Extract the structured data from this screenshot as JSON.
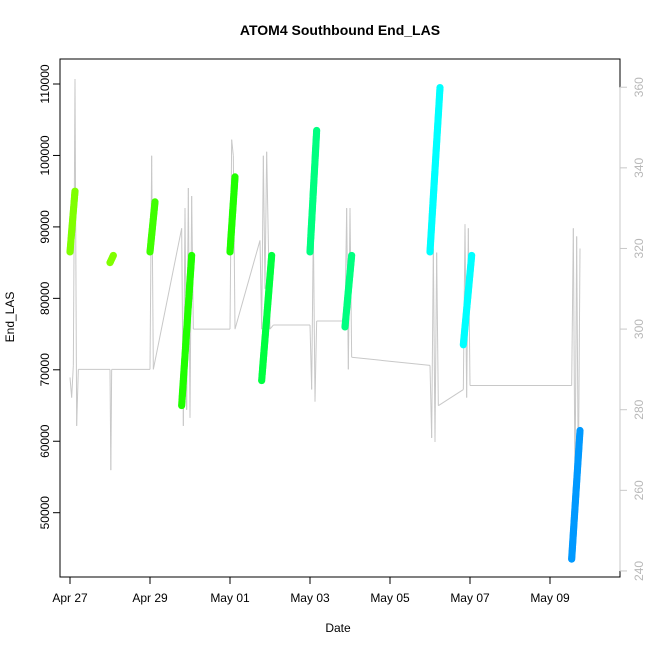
{
  "chart_data": {
    "type": "scatter",
    "title": "ATOM4 Southbound End_LAS",
    "xlabel": "Date",
    "ylabel": "End_LAS",
    "x_ticks": [
      "Apr 27",
      "Apr 29",
      "May 01",
      "May 03",
      "May 05",
      "May 07",
      "May 09"
    ],
    "xlim": [
      "2021-04-26T18:00",
      "2021-05-10T18:00"
    ],
    "ylim": [
      41000,
      113500
    ],
    "y_ticks": [
      50000,
      60000,
      70000,
      80000,
      90000,
      100000,
      110000
    ],
    "y2_ticks": [
      240,
      260,
      280,
      300,
      320,
      340,
      360
    ],
    "y2lim": [
      238.5,
      367
    ],
    "y2_color": "#c8c8c8",
    "grid": false,
    "series": [
      {
        "kind": "points",
        "segments": [
          {
            "x0": "2021-04-27T00:00",
            "x1": "2021-04-27T03:00",
            "y0": 86500,
            "y1": 95000,
            "color": "#80ff00"
          },
          {
            "x0": "2021-04-28T00:00",
            "x1": "2021-04-28T02:00",
            "y0": 85000,
            "y1": 86000,
            "color": "#80ff00"
          },
          {
            "x0": "2021-04-29T00:00",
            "x1": "2021-04-29T03:00",
            "y0": 86500,
            "y1": 93500,
            "color": "#40ff00"
          },
          {
            "x0": "2021-04-29T19:00",
            "x1": "2021-04-30T01:00",
            "y0": 65000,
            "y1": 86000,
            "color": "#20ff00"
          },
          {
            "x0": "2021-05-01T00:00",
            "x1": "2021-05-01T03:00",
            "y0": 86500,
            "y1": 97000,
            "color": "#20ff00"
          },
          {
            "x0": "2021-05-01T19:00",
            "x1": "2021-05-02T01:00",
            "y0": 68500,
            "y1": 86000,
            "color": "#00ff40"
          },
          {
            "x0": "2021-05-03T00:00",
            "x1": "2021-05-03T04:00",
            "y0": 86500,
            "y1": 103500,
            "color": "#00ff80"
          },
          {
            "x0": "2021-05-03T21:00",
            "x1": "2021-05-04T01:00",
            "y0": 76000,
            "y1": 86000,
            "color": "#00ff80"
          },
          {
            "x0": "2021-05-06T00:00",
            "x1": "2021-05-06T06:00",
            "y0": 86500,
            "y1": 109500,
            "color": "#00ffff"
          },
          {
            "x0": "2021-05-06T20:00",
            "x1": "2021-05-07T01:00",
            "y0": 73500,
            "y1": 86000,
            "color": "#00ffff"
          },
          {
            "x0": "2021-05-09T13:00",
            "x1": "2021-05-09T18:00",
            "y0": 43500,
            "y1": 61500,
            "color": "#0099ff"
          }
        ]
      },
      {
        "kind": "line",
        "axis": "right",
        "color": "#c8c8c8",
        "points": [
          [
            "2021-04-27T00:00",
            288
          ],
          [
            "2021-04-27T01:00",
            283
          ],
          [
            "2021-04-27T02:00",
            291
          ],
          [
            "2021-04-27T03:00",
            362
          ],
          [
            "2021-04-27T04:00",
            276
          ],
          [
            "2021-04-27T05:00",
            290
          ],
          [
            "2021-04-28T00:00",
            290
          ],
          [
            "2021-04-28T00:30",
            265
          ],
          [
            "2021-04-28T01:00",
            290
          ],
          [
            "2021-04-29T00:00",
            290
          ],
          [
            "2021-04-29T01:00",
            343
          ],
          [
            "2021-04-29T02:00",
            290
          ],
          [
            "2021-04-29T19:00",
            325
          ],
          [
            "2021-04-29T20:00",
            276
          ],
          [
            "2021-04-29T21:00",
            330
          ],
          [
            "2021-04-29T22:00",
            280
          ],
          [
            "2021-04-29T23:00",
            335
          ],
          [
            "2021-04-30T00:00",
            278
          ],
          [
            "2021-04-30T01:00",
            333
          ],
          [
            "2021-04-30T02:00",
            300
          ],
          [
            "2021-05-01T00:00",
            300
          ],
          [
            "2021-05-01T01:00",
            347
          ],
          [
            "2021-05-01T02:00",
            343
          ],
          [
            "2021-05-01T03:00",
            300
          ],
          [
            "2021-05-01T18:00",
            322
          ],
          [
            "2021-05-01T19:00",
            300
          ],
          [
            "2021-05-01T20:00",
            343
          ],
          [
            "2021-05-01T21:00",
            310
          ],
          [
            "2021-05-01T22:00",
            344
          ],
          [
            "2021-05-02T00:00",
            300
          ],
          [
            "2021-05-02T02:00",
            301
          ],
          [
            "2021-05-03T00:00",
            301
          ],
          [
            "2021-05-03T01:00",
            285
          ],
          [
            "2021-05-03T02:00",
            325
          ],
          [
            "2021-05-03T03:00",
            282
          ],
          [
            "2021-05-03T04:00",
            302
          ],
          [
            "2021-05-03T21:00",
            302
          ],
          [
            "2021-05-03T22:00",
            330
          ],
          [
            "2021-05-03T23:00",
            290
          ],
          [
            "2021-05-04T00:00",
            330
          ],
          [
            "2021-05-04T01:00",
            293
          ],
          [
            "2021-05-06T00:00",
            291
          ],
          [
            "2021-05-06T01:00",
            273
          ],
          [
            "2021-05-06T02:00",
            320
          ],
          [
            "2021-05-06T03:00",
            272
          ],
          [
            "2021-05-06T04:00",
            319
          ],
          [
            "2021-05-06T05:00",
            281
          ],
          [
            "2021-05-06T20:00",
            285
          ],
          [
            "2021-05-06T21:00",
            326
          ],
          [
            "2021-05-06T22:00",
            283
          ],
          [
            "2021-05-06T23:00",
            325
          ],
          [
            "2021-05-07T00:00",
            286
          ],
          [
            "2021-05-09T13:00",
            286
          ],
          [
            "2021-05-09T14:00",
            325
          ],
          [
            "2021-05-09T15:00",
            260
          ],
          [
            "2021-05-09T16:00",
            323
          ],
          [
            "2021-05-09T17:00",
            262
          ],
          [
            "2021-05-09T18:00",
            320
          ]
        ]
      }
    ]
  }
}
